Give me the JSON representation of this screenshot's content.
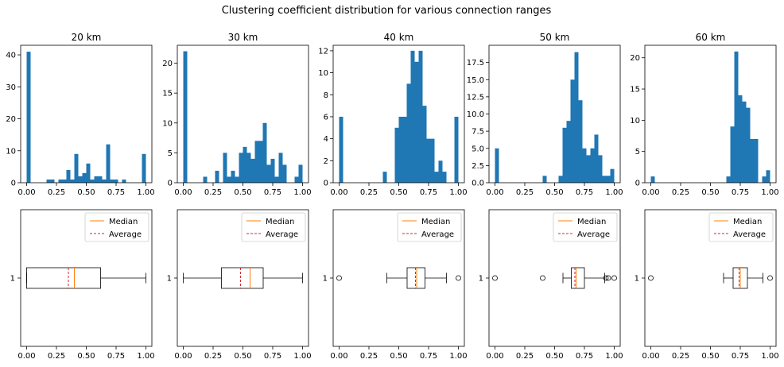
{
  "figure": {
    "title": "Clustering coefficient distribution for various connection ranges"
  },
  "legend": {
    "median_label": "Median",
    "average_label": "Average"
  },
  "colors": {
    "hist": "#1f77b4",
    "median": "#ff7f0e",
    "average": "#d62728",
    "axes": "#000000"
  },
  "chart_data": [
    {
      "type": "histogram",
      "title": "20 km",
      "bin_width": 0.0333,
      "bins": [
        {
          "x": 0.0,
          "count": 41
        },
        {
          "x": 0.1667,
          "count": 1
        },
        {
          "x": 0.2,
          "count": 1
        },
        {
          "x": 0.2667,
          "count": 1
        },
        {
          "x": 0.3,
          "count": 1
        },
        {
          "x": 0.3333,
          "count": 4
        },
        {
          "x": 0.3667,
          "count": 1
        },
        {
          "x": 0.4,
          "count": 9
        },
        {
          "x": 0.4333,
          "count": 2
        },
        {
          "x": 0.4667,
          "count": 3
        },
        {
          "x": 0.5,
          "count": 6
        },
        {
          "x": 0.5333,
          "count": 1
        },
        {
          "x": 0.5667,
          "count": 2
        },
        {
          "x": 0.6,
          "count": 2
        },
        {
          "x": 0.6333,
          "count": 1
        },
        {
          "x": 0.6667,
          "count": 12
        },
        {
          "x": 0.7,
          "count": 1
        },
        {
          "x": 0.7333,
          "count": 1
        },
        {
          "x": 0.8,
          "count": 1
        },
        {
          "x": 0.9667,
          "count": 9
        }
      ],
      "xlim": [
        -0.05,
        1.05
      ],
      "ylim": [
        0,
        43
      ],
      "xticks": [
        "0.00",
        "0.25",
        "0.50",
        "0.75",
        "1.00"
      ],
      "yticks": [
        0,
        10,
        20,
        30,
        40
      ]
    },
    {
      "type": "histogram",
      "title": "30 km",
      "bin_width": 0.0333,
      "bins": [
        {
          "x": 0.0,
          "count": 22
        },
        {
          "x": 0.1667,
          "count": 1
        },
        {
          "x": 0.2667,
          "count": 2
        },
        {
          "x": 0.3333,
          "count": 5
        },
        {
          "x": 0.3667,
          "count": 1
        },
        {
          "x": 0.4,
          "count": 2
        },
        {
          "x": 0.4333,
          "count": 1
        },
        {
          "x": 0.4667,
          "count": 5
        },
        {
          "x": 0.5,
          "count": 6
        },
        {
          "x": 0.5333,
          "count": 5
        },
        {
          "x": 0.5667,
          "count": 4
        },
        {
          "x": 0.6,
          "count": 7
        },
        {
          "x": 0.6333,
          "count": 7
        },
        {
          "x": 0.6667,
          "count": 10
        },
        {
          "x": 0.7,
          "count": 3
        },
        {
          "x": 0.7333,
          "count": 4
        },
        {
          "x": 0.7667,
          "count": 1
        },
        {
          "x": 0.8,
          "count": 5
        },
        {
          "x": 0.8333,
          "count": 3
        },
        {
          "x": 0.9333,
          "count": 1
        },
        {
          "x": 0.9667,
          "count": 3
        }
      ],
      "xlim": [
        -0.05,
        1.05
      ],
      "ylim": [
        0,
        23
      ],
      "xticks": [
        "0.00",
        "0.25",
        "0.50",
        "0.75",
        "1.00"
      ],
      "yticks": [
        0,
        5,
        10,
        15,
        20
      ]
    },
    {
      "type": "histogram",
      "title": "40 km",
      "bin_width": 0.0333,
      "bins": [
        {
          "x": 0.0,
          "count": 6
        },
        {
          "x": 0.3667,
          "count": 1
        },
        {
          "x": 0.4667,
          "count": 5
        },
        {
          "x": 0.5,
          "count": 6
        },
        {
          "x": 0.5333,
          "count": 6
        },
        {
          "x": 0.5667,
          "count": 9
        },
        {
          "x": 0.6,
          "count": 12
        },
        {
          "x": 0.6333,
          "count": 11
        },
        {
          "x": 0.6667,
          "count": 12
        },
        {
          "x": 0.7,
          "count": 7
        },
        {
          "x": 0.7333,
          "count": 4
        },
        {
          "x": 0.7667,
          "count": 4
        },
        {
          "x": 0.8,
          "count": 1
        },
        {
          "x": 0.8333,
          "count": 2
        },
        {
          "x": 0.8667,
          "count": 1
        },
        {
          "x": 0.9667,
          "count": 6
        }
      ],
      "xlim": [
        -0.05,
        1.05
      ],
      "ylim": [
        0,
        12.5
      ],
      "xticks": [
        "0.00",
        "0.25",
        "0.50",
        "0.75",
        "1.00"
      ],
      "yticks": [
        0,
        2,
        4,
        6,
        8,
        10,
        12
      ]
    },
    {
      "type": "histogram",
      "title": "50 km",
      "bin_width": 0.0333,
      "bins": [
        {
          "x": 0.0,
          "count": 5
        },
        {
          "x": 0.4,
          "count": 1
        },
        {
          "x": 0.5333,
          "count": 1
        },
        {
          "x": 0.5667,
          "count": 8
        },
        {
          "x": 0.6,
          "count": 9
        },
        {
          "x": 0.6333,
          "count": 15
        },
        {
          "x": 0.6667,
          "count": 19
        },
        {
          "x": 0.7,
          "count": 12
        },
        {
          "x": 0.7333,
          "count": 5
        },
        {
          "x": 0.7667,
          "count": 4
        },
        {
          "x": 0.8,
          "count": 5
        },
        {
          "x": 0.8333,
          "count": 7
        },
        {
          "x": 0.8667,
          "count": 4
        },
        {
          "x": 0.9,
          "count": 1
        },
        {
          "x": 0.9333,
          "count": 1
        },
        {
          "x": 0.9667,
          "count": 2
        }
      ],
      "xlim": [
        -0.05,
        1.05
      ],
      "ylim": [
        0,
        20
      ],
      "xticks": [
        "0.00",
        "0.25",
        "0.50",
        "0.75",
        "1.00"
      ],
      "yticks": [
        "0.0",
        "2.5",
        "5.0",
        "7.5",
        "10.0",
        "12.5",
        "15.0",
        "17.5"
      ]
    },
    {
      "type": "histogram",
      "title": "60 km",
      "bin_width": 0.0333,
      "bins": [
        {
          "x": 0.0,
          "count": 1
        },
        {
          "x": 0.6333,
          "count": 1
        },
        {
          "x": 0.6667,
          "count": 9
        },
        {
          "x": 0.7,
          "count": 21
        },
        {
          "x": 0.7333,
          "count": 14
        },
        {
          "x": 0.7667,
          "count": 13
        },
        {
          "x": 0.8,
          "count": 12
        },
        {
          "x": 0.8333,
          "count": 7
        },
        {
          "x": 0.8667,
          "count": 7
        },
        {
          "x": 0.9333,
          "count": 1
        },
        {
          "x": 0.9667,
          "count": 2
        }
      ],
      "xlim": [
        -0.05,
        1.05
      ],
      "ylim": [
        0,
        22
      ],
      "xticks": [
        "0.00",
        "0.25",
        "0.50",
        "0.75",
        "1.00"
      ],
      "yticks": [
        0,
        5,
        10,
        15,
        20
      ]
    },
    {
      "type": "boxplot",
      "title": "",
      "q1": 0.0,
      "median": 0.4,
      "q3": 0.62,
      "whisker_low": 0.0,
      "whisker_high": 1.0,
      "average": 0.35,
      "fliers": [],
      "xlim": [
        -0.05,
        1.05
      ],
      "xticks": [
        "0.00",
        "0.25",
        "0.50",
        "0.75",
        "1.00"
      ],
      "ytick": "1"
    },
    {
      "type": "boxplot",
      "title": "",
      "q1": 0.32,
      "median": 0.56,
      "q3": 0.67,
      "whisker_low": 0.0,
      "whisker_high": 1.0,
      "average": 0.48,
      "fliers": [],
      "xlim": [
        -0.05,
        1.05
      ],
      "xticks": [
        "0.00",
        "0.25",
        "0.50",
        "0.75",
        "1.00"
      ],
      "ytick": "1"
    },
    {
      "type": "boxplot",
      "title": "",
      "q1": 0.57,
      "median": 0.65,
      "q3": 0.72,
      "whisker_low": 0.4,
      "whisker_high": 0.9,
      "average": 0.64,
      "fliers": [
        0.0,
        1.0
      ],
      "xlim": [
        -0.05,
        1.05
      ],
      "xticks": [
        "0.00",
        "0.25",
        "0.50",
        "0.75",
        "1.00"
      ],
      "ytick": "1"
    },
    {
      "type": "boxplot",
      "title": "",
      "q1": 0.64,
      "median": 0.68,
      "q3": 0.75,
      "whisker_low": 0.57,
      "whisker_high": 0.92,
      "average": 0.67,
      "fliers": [
        0.0,
        0.4,
        0.93,
        0.95,
        1.0
      ],
      "xlim": [
        -0.05,
        1.05
      ],
      "xticks": [
        "0.00",
        "0.25",
        "0.50",
        "0.75",
        "1.00"
      ],
      "ytick": "1"
    },
    {
      "type": "boxplot",
      "title": "",
      "q1": 0.69,
      "median": 0.75,
      "q3": 0.81,
      "whisker_low": 0.61,
      "whisker_high": 0.94,
      "average": 0.74,
      "fliers": [
        0.0,
        1.0
      ],
      "xlim": [
        -0.05,
        1.05
      ],
      "xticks": [
        "0.00",
        "0.25",
        "0.50",
        "0.75",
        "1.00"
      ],
      "ytick": "1"
    }
  ]
}
